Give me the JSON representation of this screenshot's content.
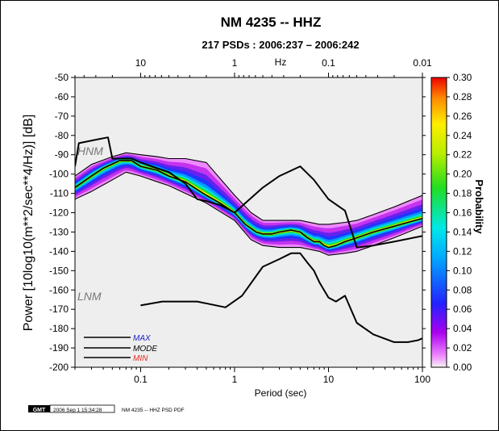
{
  "chart_data": {
    "type": "line",
    "title": "NM 4235 -- HHZ",
    "subtitle": "217 PSDs : 2006:237 – 2006:242",
    "xlabel": "Period (sec)",
    "ylabel": "Power [10log10(m**2/sec**4/Hz)] [dB]",
    "top_axis_label": "Hz",
    "xscale": "log",
    "xlim": [
      0.02,
      100
    ],
    "ylim": [
      -200,
      -50
    ],
    "x_ticks": [
      0.1,
      1,
      10,
      100
    ],
    "x_tick_labels": [
      "0.1",
      "1",
      "10",
      "100"
    ],
    "top_ticks": [
      10,
      1,
      0.1,
      0.01
    ],
    "top_tick_labels": [
      "10",
      "1",
      "0.1",
      "0.01"
    ],
    "y_ticks": [
      -50,
      -60,
      -70,
      -80,
      -90,
      -100,
      -110,
      -120,
      -130,
      -140,
      -150,
      -160,
      -170,
      -180,
      -190,
      -200
    ],
    "colorbar": {
      "label": "Probability",
      "range": [
        0,
        0.3
      ],
      "ticks": [
        "0.30",
        "0.28",
        "0.26",
        "0.24",
        "0.22",
        "0.20",
        "0.18",
        "0.16",
        "0.14",
        "0.12",
        "0.10",
        "0.08",
        "0.06",
        "0.04",
        "0.02",
        "0.00"
      ]
    },
    "annotations": [
      "HNM",
      "LNM"
    ],
    "legend": {
      "position": "bottom-left",
      "entries": [
        {
          "label": "MAX",
          "color": "#1a1acc"
        },
        {
          "label": "MODE",
          "color": "#000000"
        },
        {
          "label": "MIN",
          "color": "#ee2222"
        }
      ]
    },
    "series": [
      {
        "name": "MODE",
        "x": [
          0.02,
          0.03,
          0.04,
          0.06,
          0.08,
          0.1,
          0.15,
          0.2,
          0.3,
          0.4,
          0.5,
          0.7,
          1.0,
          1.3,
          1.7,
          2.0,
          2.5,
          3.0,
          4.0,
          5.0,
          6.0,
          7.0,
          8.0,
          9.0,
          10.0,
          12.0,
          15.0,
          20.0,
          30.0,
          50.0,
          70.0,
          100.0
        ],
        "y": [
          -107,
          -101,
          -97,
          -93,
          -93,
          -96,
          -98,
          -101,
          -104,
          -108,
          -111,
          -115,
          -120,
          -126,
          -130,
          -131,
          -131,
          -130,
          -129,
          -130,
          -133,
          -135,
          -135,
          -137,
          -138,
          -137,
          -135,
          -133,
          -130,
          -127,
          -125,
          -123
        ]
      },
      {
        "name": "MAX",
        "x": [
          0.02,
          0.03,
          0.05,
          0.07,
          0.1,
          0.15,
          0.2,
          0.3,
          0.5,
          1.0,
          1.5,
          2.0,
          3.0,
          5.0,
          8.0,
          10.0,
          15.0,
          20.0,
          30.0,
          50.0,
          100.0
        ],
        "y": [
          -101,
          -95,
          -91,
          -89,
          -90,
          -91,
          -92,
          -92,
          -94,
          -111,
          -120,
          -124,
          -124,
          -124,
          -126,
          -126,
          -125,
          -124,
          -121,
          -117,
          -111
        ]
      },
      {
        "name": "MIN",
        "x": [
          0.02,
          0.03,
          0.05,
          0.07,
          0.1,
          0.15,
          0.2,
          0.3,
          0.5,
          1.0,
          1.5,
          2.0,
          3.0,
          5.0,
          8.0,
          10.0,
          15.0,
          20.0,
          30.0,
          50.0,
          100.0
        ],
        "y": [
          -113,
          -109,
          -103,
          -99,
          -101,
          -104,
          -106,
          -110,
          -115,
          -124,
          -134,
          -137,
          -138,
          -138,
          -140,
          -142,
          -141,
          -140,
          -137,
          -133,
          -127
        ]
      },
      {
        "name": "HNM",
        "x": [
          0.02,
          0.022,
          0.035,
          0.045,
          0.05,
          0.06,
          0.07,
          0.08,
          0.1,
          0.15,
          0.2,
          0.3,
          0.4,
          0.5,
          0.7,
          1.0,
          2.0,
          3.0,
          5.0,
          7.0,
          10.0,
          15.0,
          20.0,
          30.0,
          50.0,
          100.0
        ],
        "y": [
          -96,
          -84,
          -82,
          -81,
          -92,
          -92,
          -92,
          -92,
          -94,
          -97,
          -99,
          -105,
          -113,
          -114,
          -116,
          -120,
          -107,
          -101,
          -96,
          -103,
          -113,
          -119,
          -138,
          -137,
          -135,
          -132
        ]
      },
      {
        "name": "LNM",
        "x": [
          0.1,
          0.17,
          0.4,
          0.8,
          1.2,
          2.0,
          3.0,
          4.0,
          5.0,
          6.0,
          7.0,
          8.0,
          10.0,
          12.0,
          15.0,
          20.0,
          30.0,
          50.0,
          70.0,
          90.0,
          100.0
        ],
        "y": [
          -168,
          -166,
          -166,
          -169,
          -163,
          -148,
          -144,
          -141,
          -141,
          -146,
          -150,
          -156,
          -164,
          -166,
          -163,
          -177,
          -183,
          -187,
          -187,
          -186,
          -185
        ]
      }
    ]
  }
}
